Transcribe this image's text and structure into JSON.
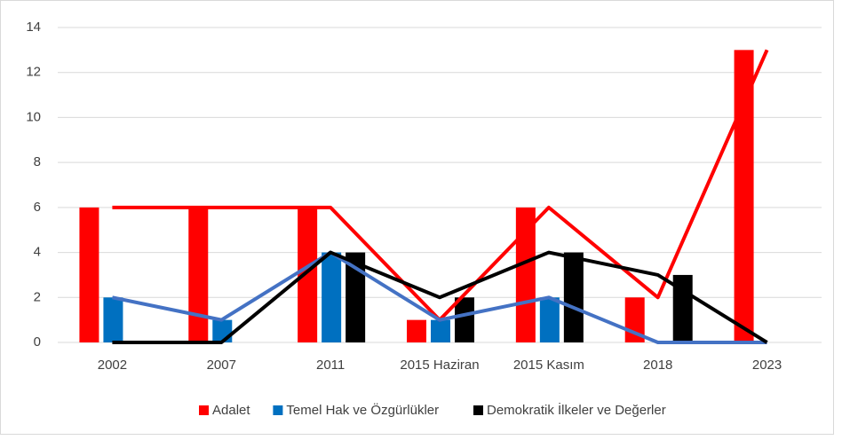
{
  "chart_data": {
    "type": "bar_line",
    "categories": [
      "2002",
      "2007",
      "2011",
      "2015 Haziran",
      "2015 Kasım",
      "2018",
      "2023"
    ],
    "series": [
      {
        "name": "Adalet",
        "color": "#ff0000",
        "line_color": "#ff0000",
        "values": [
          6,
          6,
          6,
          1,
          6,
          2,
          13
        ]
      },
      {
        "name": "Temel Hak ve Özgürlükler",
        "color": "#0070c0",
        "line_color": "#4472c4",
        "values": [
          2,
          1,
          4,
          1,
          2,
          0,
          0
        ]
      },
      {
        "name": "Demokratik İlkeler ve Değerler",
        "color": "#000000",
        "line_color": "#000000",
        "values": [
          0,
          0,
          4,
          2,
          4,
          3,
          0
        ]
      }
    ],
    "ylim": [
      0,
      14
    ],
    "yticks": [
      0,
      2,
      4,
      6,
      8,
      10,
      12,
      14
    ],
    "grid": true,
    "legend": "bottom"
  }
}
